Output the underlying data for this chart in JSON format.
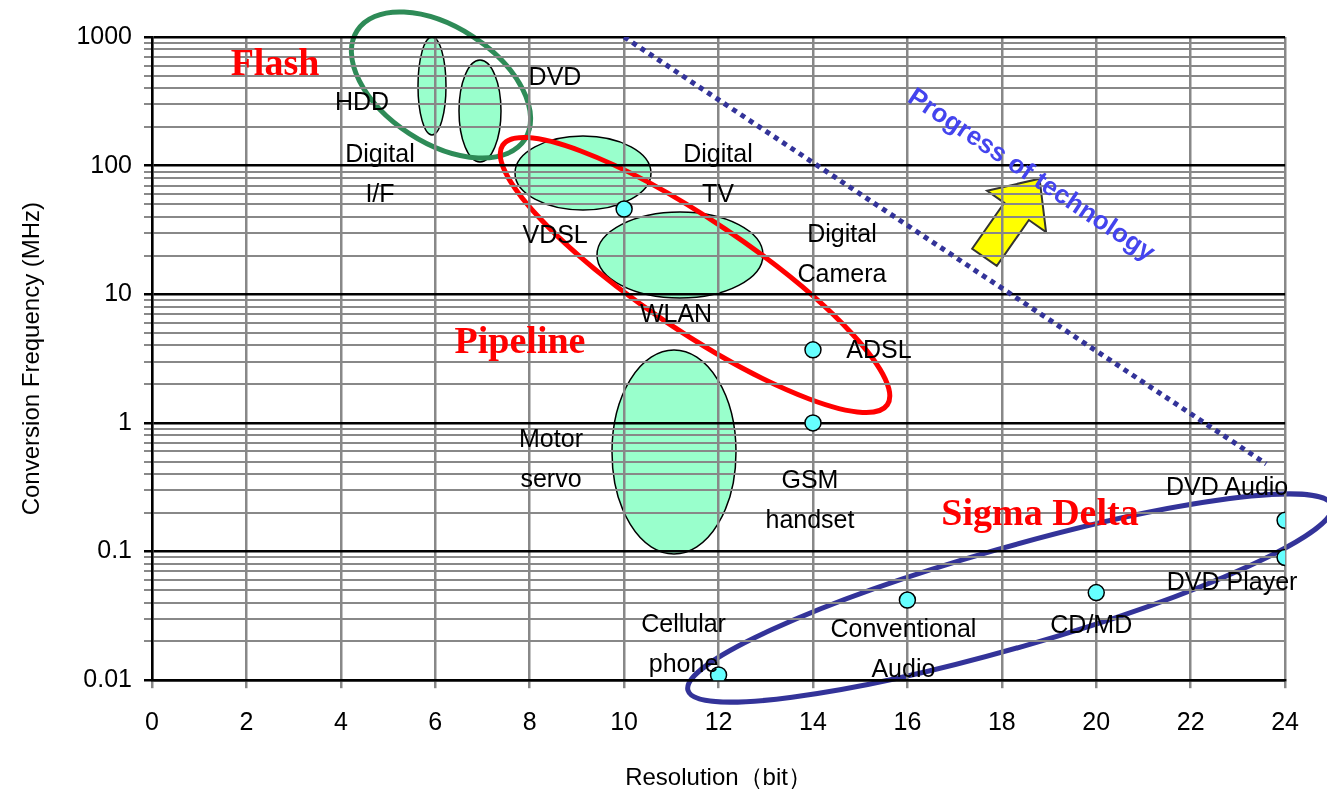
{
  "chart_data": {
    "type": "scatter",
    "xlabel": "Resolution（bit）",
    "ylabel": "Conversion Frequency (MHz)",
    "xlim": [
      0,
      24
    ],
    "xticks": [
      0,
      2,
      4,
      6,
      8,
      10,
      12,
      14,
      16,
      18,
      20,
      22,
      24
    ],
    "ylim": [
      0.01,
      1000
    ],
    "yticks": [
      {
        "value": 0.01,
        "label": "0.01"
      },
      {
        "value": 0.02,
        "label": null
      },
      {
        "value": 0.03,
        "label": null
      },
      {
        "value": 0.04,
        "label": null
      },
      {
        "value": 0.05,
        "label": null
      },
      {
        "value": 0.06,
        "label": null
      },
      {
        "value": 0.07,
        "label": null
      },
      {
        "value": 0.08,
        "label": null
      },
      {
        "value": 0.09,
        "label": null
      },
      {
        "value": 0.1,
        "label": "0.1"
      },
      {
        "value": 0.2,
        "label": null
      },
      {
        "value": 0.3,
        "label": null
      },
      {
        "value": 0.4,
        "label": null
      },
      {
        "value": 0.5,
        "label": null
      },
      {
        "value": 0.6,
        "label": null
      },
      {
        "value": 0.7,
        "label": null
      },
      {
        "value": 0.8,
        "label": null
      },
      {
        "value": 0.9,
        "label": null
      },
      1,
      {
        "value": 2,
        "label": null
      },
      {
        "value": 3,
        "label": null
      },
      {
        "value": 4,
        "label": null
      },
      {
        "value": 5,
        "label": null
      },
      {
        "value": 6,
        "label": null
      },
      {
        "value": 7,
        "label": null
      },
      {
        "value": 8,
        "label": null
      },
      {
        "value": 9,
        "label": null
      },
      10,
      {
        "value": 20,
        "label": null
      },
      {
        "value": 30,
        "label": null
      },
      {
        "value": 40,
        "label": null
      },
      {
        "value": 50,
        "label": null
      },
      {
        "value": 60,
        "label": null
      },
      {
        "value": 70,
        "label": null
      },
      {
        "value": 80,
        "label": null
      },
      {
        "value": 90,
        "label": null
      },
      100,
      {
        "value": 200,
        "label": null
      },
      {
        "value": 300,
        "label": null
      },
      {
        "value": 400,
        "label": null
      },
      {
        "value": 500,
        "label": null
      },
      {
        "value": 600,
        "label": null
      },
      {
        "value": 700,
        "label": null
      },
      {
        "value": 800,
        "label": null
      },
      {
        "value": 900,
        "label": null
      },
      1000
    ],
    "log": "y",
    "grid": true,
    "legend": false,
    "series": [
      {
        "type": "scatter",
        "marker": "circle",
        "color": "#66ffff",
        "x": [
          10,
          14,
          14,
          24,
          24,
          20,
          16,
          12
        ],
        "values": [
          46,
          3.7,
          1,
          0.175,
          0.09,
          0.048,
          0.042,
          0.011
        ]
      },
      {
        "type": "line",
        "name": "Progress of technology",
        "line_style": "dotted",
        "color": "#333399",
        "x": [
          10,
          23.6
        ],
        "values": [
          1000,
          0.48
        ]
      }
    ],
    "annotations": [
      "Flash",
      "Pipeline",
      "Sigma Delta",
      "HDD",
      "DVD",
      "Digital\nI/F",
      "Digital\nTV",
      "Digital\nCamera",
      "WLAN",
      "Motor\nservo",
      {
        "text": "VDSL",
        "x": 10,
        "y": 46
      },
      {
        "text": "ADSL",
        "x": 14,
        "y": 3.7
      },
      {
        "text": "GSM\nhandset",
        "x": 14,
        "y": 1
      },
      {
        "text": "DVD Audio",
        "x": 24,
        "y": 0.175
      },
      {
        "text": "DVD Player",
        "x": 24,
        "y": 0.09
      },
      {
        "text": "CD/MD",
        "x": 20,
        "y": 0.048
      },
      {
        "text": "Conventional\nAudio",
        "x": 16,
        "y": 0.042
      },
      {
        "text": "Cellular\nphone",
        "x": 12,
        "y": 0.011
      }
    ]
  }
}
